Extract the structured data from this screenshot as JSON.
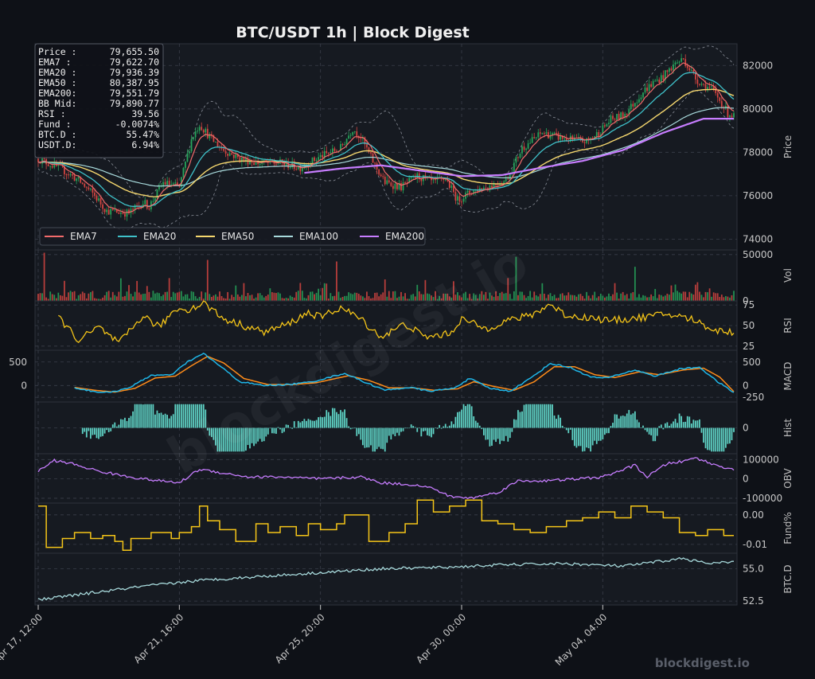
{
  "title": "BTC/USDT  1h  |  Block Digest",
  "watermark": "blockdigest.io",
  "footer_brand": "blockdigest.io",
  "info_box": [
    {
      "label": "Price :",
      "value": "79,655.50"
    },
    {
      "label": "EMA7  :",
      "value": "79,622.70"
    },
    {
      "label": "EMA20 :",
      "value": "79,936.39"
    },
    {
      "label": "EMA50 :",
      "value": "80,387.95"
    },
    {
      "label": "EMA200:",
      "value": "79,551.79"
    },
    {
      "label": "BB Mid:",
      "value": "79,890.77"
    },
    {
      "label": "RSI   :",
      "value": "39.56"
    },
    {
      "label": "Fund  :",
      "value": "-0.0074%"
    },
    {
      "label": "BTC.D :",
      "value": "55.47%"
    },
    {
      "label": "USDT.D:",
      "value": "6.94%"
    }
  ],
  "legend": [
    {
      "name": "EMA7",
      "color": "#f26b6b"
    },
    {
      "name": "EMA20",
      "color": "#3fc1c9"
    },
    {
      "name": "EMA50",
      "color": "#f5d76e"
    },
    {
      "name": "EMA100",
      "color": "#a8dadc"
    },
    {
      "name": "EMA200",
      "color": "#c77dff"
    }
  ],
  "colors": {
    "up": "#26a65b",
    "down": "#d64541",
    "rsi": "#f5c518",
    "macd": "#1fb6e8",
    "signal": "#ff8c1a",
    "hist": "#5fd3c6",
    "obv": "#c77dff",
    "fund": "#f5c518",
    "btcd": "#a8dadc",
    "grid": "#3a3f4a",
    "panel_bg": "#161a21"
  },
  "chart_data": {
    "type": "candlestick-multipanel",
    "x_range": [
      "Apr 17, 12:00",
      "May 07, 13:00"
    ],
    "x_ticks": [
      "Apr 17, 12:00",
      "Apr 21, 16:00",
      "Apr 25, 20:00",
      "Apr 30, 00:00",
      "May 04, 04:00"
    ],
    "price": {
      "ylabel": "Price",
      "ylim": [
        73500,
        83000
      ],
      "yticks": [
        "74000",
        "76000",
        "78000",
        "80000",
        "82000"
      ],
      "anchors": [
        [
          0,
          77700
        ],
        [
          12,
          77200
        ],
        [
          20,
          76700
        ],
        [
          28,
          76000
        ],
        [
          34,
          75300
        ],
        [
          45,
          75200
        ],
        [
          52,
          75700
        ],
        [
          55,
          75500
        ],
        [
          62,
          76600
        ],
        [
          70,
          76400
        ],
        [
          76,
          78600
        ],
        [
          80,
          79300
        ],
        [
          86,
          78600
        ],
        [
          92,
          78100
        ],
        [
          100,
          77700
        ],
        [
          110,
          77500
        ],
        [
          120,
          77500
        ],
        [
          130,
          77300
        ],
        [
          140,
          77800
        ],
        [
          150,
          78200
        ],
        [
          156,
          79100
        ],
        [
          160,
          78700
        ],
        [
          167,
          77400
        ],
        [
          172,
          76600
        ],
        [
          180,
          76400
        ],
        [
          188,
          76900
        ],
        [
          196,
          76600
        ],
        [
          202,
          76800
        ],
        [
          208,
          75800
        ],
        [
          215,
          76200
        ],
        [
          222,
          76400
        ],
        [
          232,
          76700
        ],
        [
          240,
          78200
        ],
        [
          250,
          78900
        ],
        [
          262,
          78600
        ],
        [
          272,
          78500
        ],
        [
          278,
          78900
        ],
        [
          284,
          79500
        ],
        [
          290,
          79700
        ],
        [
          294,
          80100
        ],
        [
          300,
          80800
        ],
        [
          305,
          81200
        ],
        [
          310,
          81500
        ],
        [
          316,
          82100
        ],
        [
          320,
          82300
        ],
        [
          326,
          81400
        ],
        [
          330,
          81100
        ],
        [
          334,
          80900
        ],
        [
          338,
          80400
        ],
        [
          342,
          79800
        ],
        [
          345,
          79650
        ]
      ],
      "ema200_start_index": 132,
      "ema200_anchors": [
        [
          132,
          77050
        ],
        [
          150,
          77250
        ],
        [
          170,
          77400
        ],
        [
          190,
          77150
        ],
        [
          210,
          76900
        ],
        [
          230,
          76950
        ],
        [
          250,
          77300
        ],
        [
          270,
          77600
        ],
        [
          290,
          78100
        ],
        [
          310,
          78900
        ],
        [
          330,
          79550
        ],
        [
          345,
          79550
        ]
      ]
    },
    "volume": {
      "ylabel": "Vol",
      "ylim": [
        0,
        55000
      ],
      "yticks": [
        "0",
        "50000"
      ]
    },
    "rsi": {
      "ylabel": "RSI",
      "ylim": [
        20,
        80
      ],
      "yticks": [
        "25",
        "50",
        "75"
      ],
      "start_index": 10,
      "anchors": [
        [
          10,
          61
        ],
        [
          20,
          32
        ],
        [
          30,
          48
        ],
        [
          40,
          28
        ],
        [
          52,
          62
        ],
        [
          60,
          48
        ],
        [
          68,
          70
        ],
        [
          76,
          70
        ],
        [
          82,
          78
        ],
        [
          92,
          58
        ],
        [
          102,
          50
        ],
        [
          112,
          42
        ],
        [
          124,
          52
        ],
        [
          134,
          66
        ],
        [
          140,
          60
        ],
        [
          150,
          72
        ],
        [
          160,
          58
        ],
        [
          170,
          36
        ],
        [
          182,
          52
        ],
        [
          192,
          36
        ],
        [
          204,
          40
        ],
        [
          210,
          58
        ],
        [
          222,
          46
        ],
        [
          232,
          56
        ],
        [
          244,
          62
        ],
        [
          254,
          76
        ],
        [
          262,
          62
        ],
        [
          272,
          60
        ],
        [
          284,
          56
        ],
        [
          300,
          60
        ],
        [
          312,
          64
        ],
        [
          324,
          58
        ],
        [
          336,
          44
        ],
        [
          345,
          42
        ]
      ]
    },
    "macd": {
      "ylabel": "MACD",
      "ylim": [
        -350,
        750
      ],
      "yticks": [
        "-250",
        "0",
        "500"
      ],
      "start_index": 18,
      "anchors": [
        [
          18,
          -50
        ],
        [
          28,
          -130
        ],
        [
          36,
          -150
        ],
        [
          46,
          -30
        ],
        [
          56,
          220
        ],
        [
          66,
          220
        ],
        [
          74,
          500
        ],
        [
          82,
          680
        ],
        [
          90,
          420
        ],
        [
          100,
          80
        ],
        [
          112,
          0
        ],
        [
          124,
          20
        ],
        [
          136,
          80
        ],
        [
          152,
          260
        ],
        [
          162,
          70
        ],
        [
          172,
          -100
        ],
        [
          184,
          -40
        ],
        [
          194,
          -120
        ],
        [
          206,
          -60
        ],
        [
          214,
          150
        ],
        [
          224,
          -60
        ],
        [
          234,
          -120
        ],
        [
          244,
          150
        ],
        [
          254,
          470
        ],
        [
          264,
          380
        ],
        [
          274,
          180
        ],
        [
          282,
          160
        ],
        [
          296,
          330
        ],
        [
          306,
          200
        ],
        [
          318,
          350
        ],
        [
          328,
          390
        ],
        [
          336,
          110
        ],
        [
          345,
          -150
        ]
      ],
      "signal_anchors": [
        [
          18,
          -40
        ],
        [
          28,
          -100
        ],
        [
          38,
          -140
        ],
        [
          48,
          -60
        ],
        [
          58,
          160
        ],
        [
          68,
          200
        ],
        [
          76,
          420
        ],
        [
          84,
          620
        ],
        [
          92,
          480
        ],
        [
          102,
          150
        ],
        [
          114,
          20
        ],
        [
          126,
          20
        ],
        [
          138,
          60
        ],
        [
          154,
          210
        ],
        [
          164,
          110
        ],
        [
          174,
          -50
        ],
        [
          186,
          -50
        ],
        [
          196,
          -100
        ],
        [
          208,
          -70
        ],
        [
          216,
          80
        ],
        [
          226,
          -20
        ],
        [
          236,
          -100
        ],
        [
          246,
          80
        ],
        [
          256,
          400
        ],
        [
          266,
          400
        ],
        [
          276,
          230
        ],
        [
          286,
          170
        ],
        [
          298,
          290
        ],
        [
          308,
          230
        ],
        [
          320,
          330
        ],
        [
          330,
          370
        ],
        [
          338,
          180
        ],
        [
          345,
          -130
        ]
      ]
    },
    "hist": {
      "ylabel": "Hist",
      "ylim": [
        -120,
        120
      ],
      "yticks": [
        "0"
      ],
      "start_index": 22
    },
    "obv": {
      "ylabel": "OBV",
      "ylim": [
        -125000,
        130000
      ],
      "yticks": [
        "-100000",
        "0",
        "100000"
      ],
      "anchors": [
        [
          0,
          40000
        ],
        [
          8,
          95000
        ],
        [
          16,
          80000
        ],
        [
          30,
          40000
        ],
        [
          40,
          20000
        ],
        [
          52,
          0
        ],
        [
          60,
          -10000
        ],
        [
          70,
          -20000
        ],
        [
          80,
          50000
        ],
        [
          92,
          30000
        ],
        [
          104,
          10000
        ],
        [
          120,
          10000
        ],
        [
          140,
          0
        ],
        [
          160,
          10000
        ],
        [
          170,
          -20000
        ],
        [
          186,
          -30000
        ],
        [
          196,
          -50000
        ],
        [
          204,
          -90000
        ],
        [
          214,
          -100000
        ],
        [
          228,
          -70000
        ],
        [
          238,
          -10000
        ],
        [
          252,
          -10000
        ],
        [
          268,
          0
        ],
        [
          280,
          10000
        ],
        [
          296,
          70000
        ],
        [
          302,
          10000
        ],
        [
          312,
          80000
        ],
        [
          320,
          90000
        ],
        [
          326,
          110000
        ],
        [
          336,
          70000
        ],
        [
          345,
          50000
        ]
      ]
    },
    "fund": {
      "ylabel": "Fund%",
      "ylim": [
        -0.013,
        0.004
      ],
      "yticks": [
        "-0.01",
        "0.00"
      ],
      "steps": [
        [
          0,
          0.003
        ],
        [
          4,
          -0.011
        ],
        [
          12,
          -0.008
        ],
        [
          18,
          -0.006
        ],
        [
          26,
          -0.008
        ],
        [
          32,
          -0.007
        ],
        [
          38,
          -0.009
        ],
        [
          42,
          -0.012
        ],
        [
          46,
          -0.008
        ],
        [
          56,
          -0.006
        ],
        [
          66,
          -0.008
        ],
        [
          70,
          -0.006
        ],
        [
          76,
          -0.004
        ],
        [
          80,
          0.003
        ],
        [
          84,
          -0.002
        ],
        [
          90,
          -0.005
        ],
        [
          98,
          -0.009
        ],
        [
          108,
          -0.003
        ],
        [
          114,
          -0.006
        ],
        [
          120,
          -0.004
        ],
        [
          128,
          -0.007
        ],
        [
          134,
          -0.003
        ],
        [
          140,
          -0.005
        ],
        [
          148,
          -0.003
        ],
        [
          152,
          0
        ],
        [
          164,
          -0.009
        ],
        [
          174,
          -0.006
        ],
        [
          182,
          -0.003
        ],
        [
          188,
          0.005
        ],
        [
          196,
          0.001
        ],
        [
          204,
          0.003
        ],
        [
          212,
          0.005
        ],
        [
          220,
          -0.002
        ],
        [
          228,
          -0.003
        ],
        [
          236,
          -0.005
        ],
        [
          244,
          -0.006
        ],
        [
          252,
          -0.004
        ],
        [
          262,
          -0.002
        ],
        [
          270,
          -0.001
        ],
        [
          278,
          0.001
        ],
        [
          286,
          -0.001
        ],
        [
          294,
          0.003
        ],
        [
          302,
          0.001
        ],
        [
          310,
          -0.001
        ],
        [
          318,
          -0.006
        ],
        [
          326,
          -0.007
        ],
        [
          332,
          -0.005
        ],
        [
          340,
          -0.007
        ],
        [
          345,
          -0.007
        ]
      ]
    },
    "btcd": {
      "ylabel": "BTC.D",
      "ylim": [
        52.2,
        56.2
      ],
      "yticks": [
        "52.5",
        "55.0"
      ],
      "anchors": [
        [
          0,
          52.6
        ],
        [
          20,
          53.0
        ],
        [
          50,
          53.6
        ],
        [
          80,
          54.1
        ],
        [
          110,
          54.4
        ],
        [
          140,
          54.7
        ],
        [
          170,
          55.0
        ],
        [
          200,
          55.1
        ],
        [
          230,
          55.3
        ],
        [
          260,
          55.4
        ],
        [
          290,
          55.2
        ],
        [
          310,
          55.6
        ],
        [
          320,
          55.8
        ],
        [
          332,
          55.4
        ],
        [
          345,
          55.5
        ]
      ]
    }
  }
}
